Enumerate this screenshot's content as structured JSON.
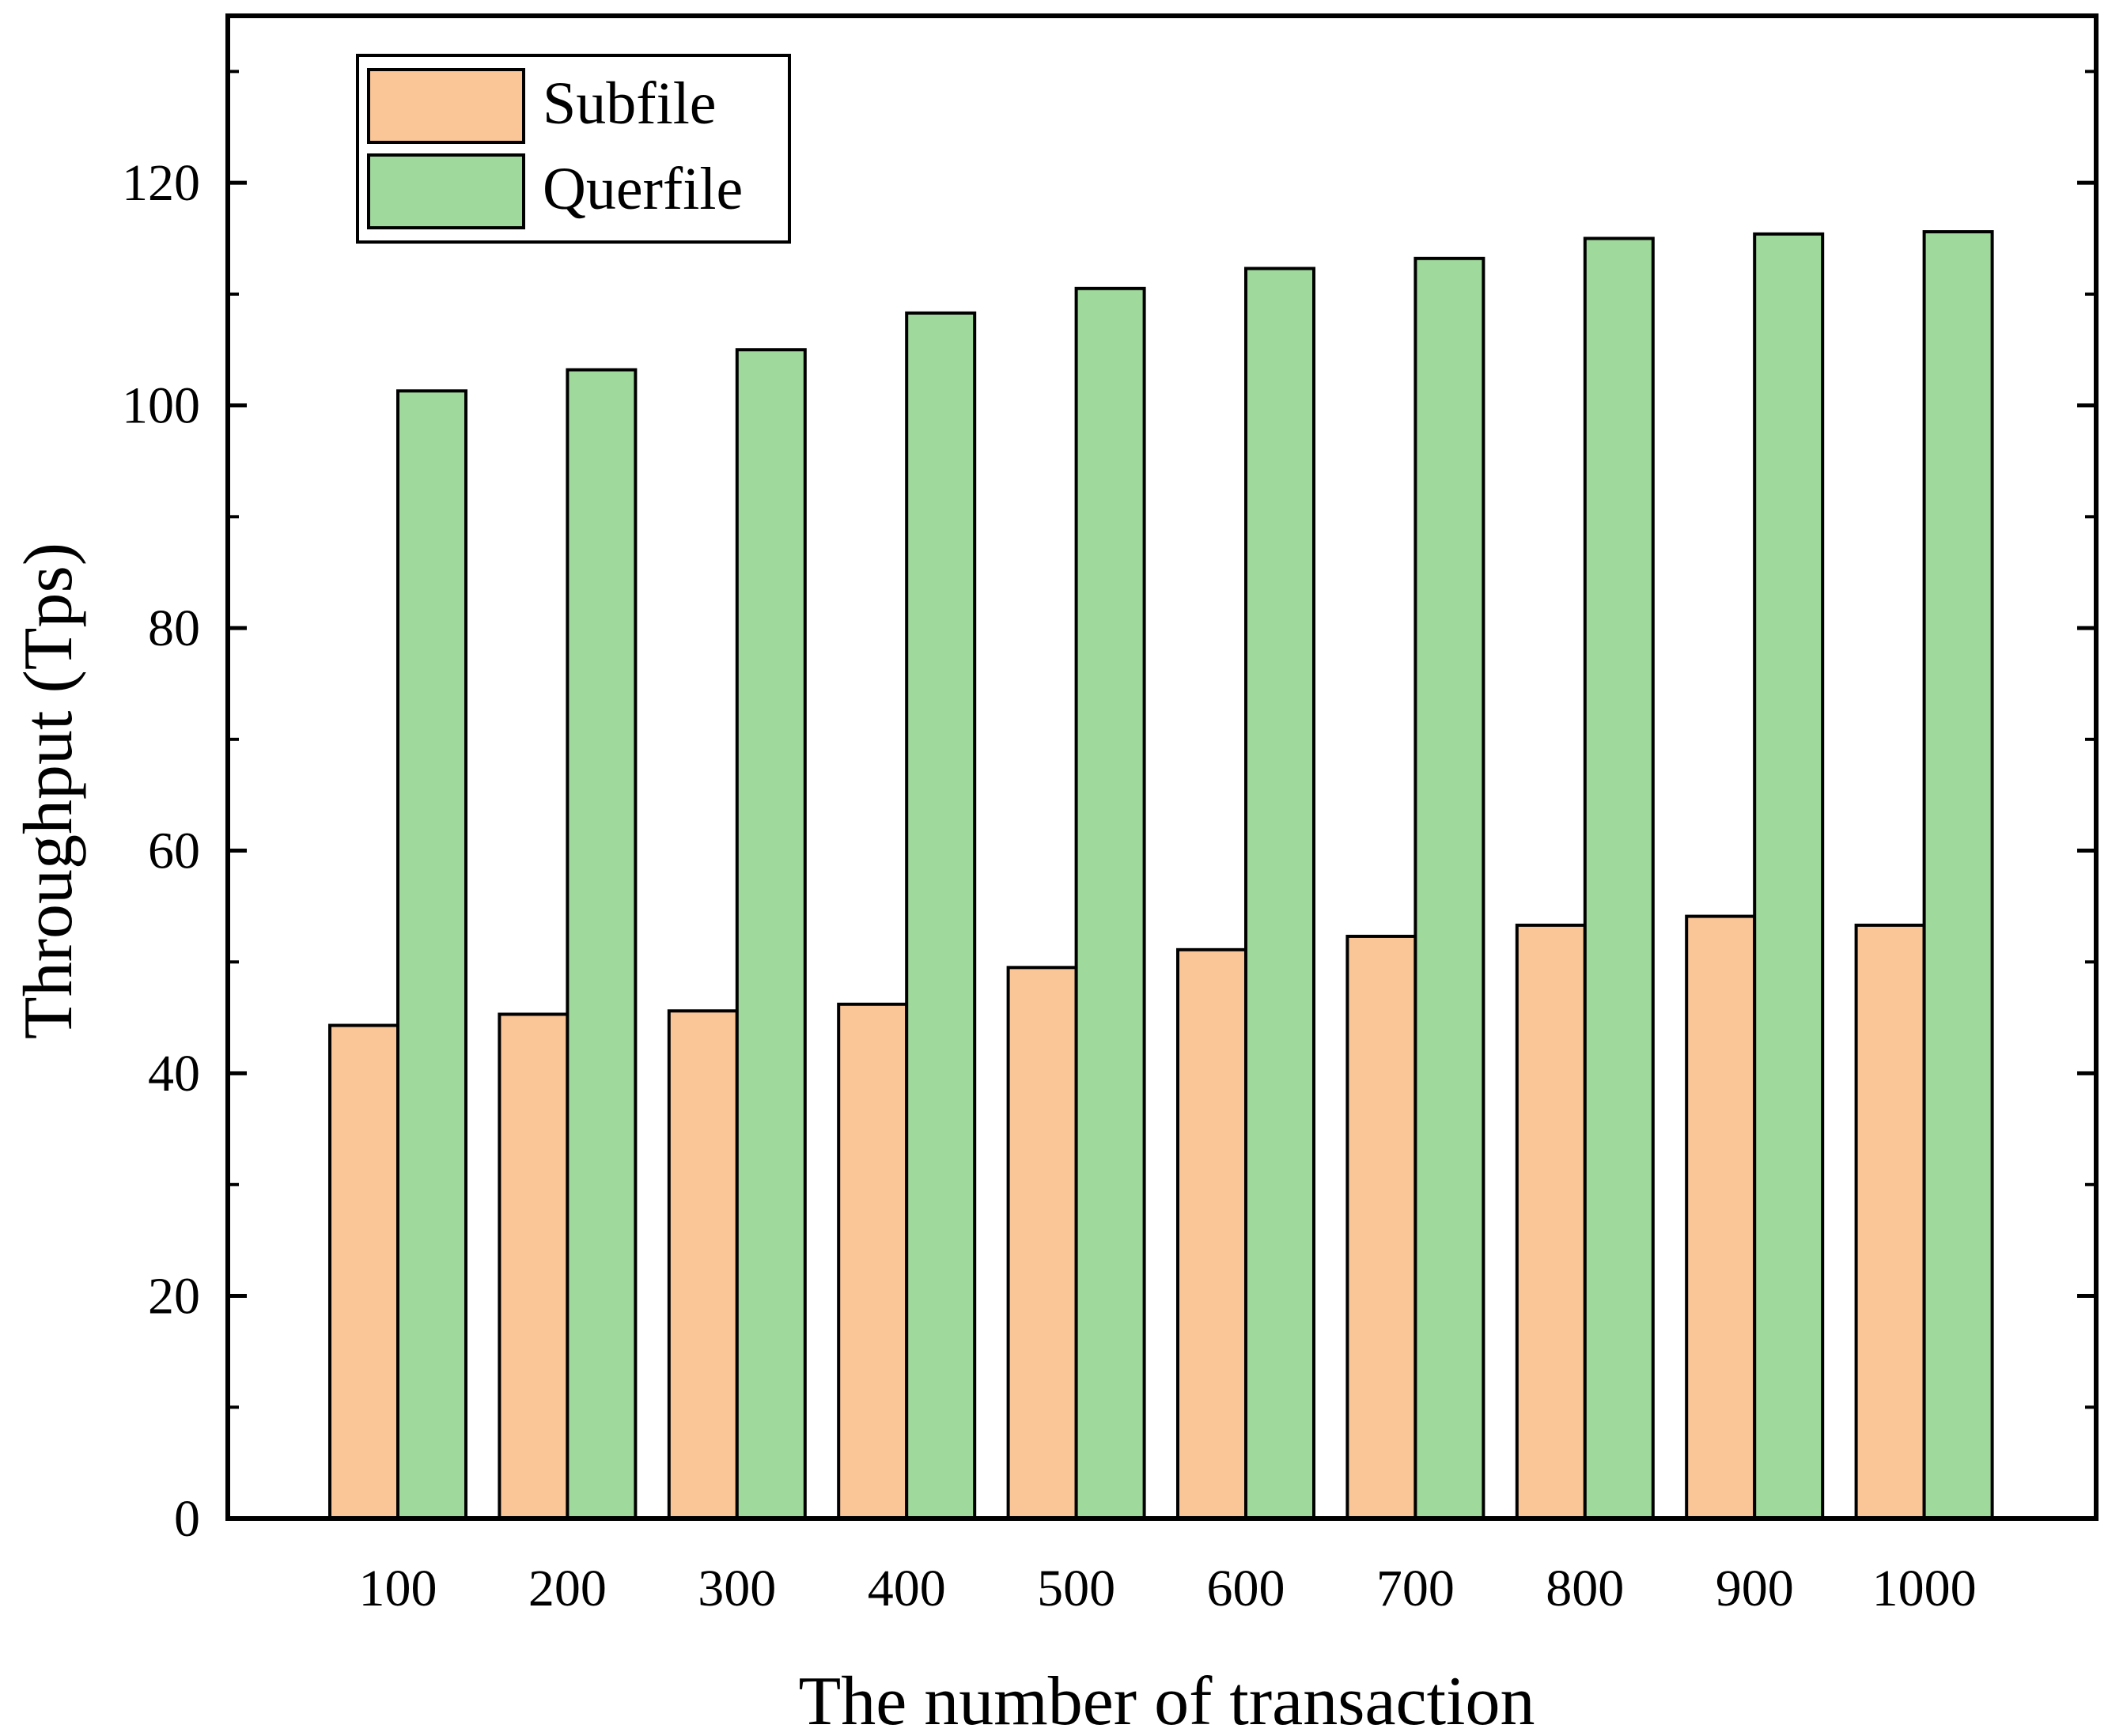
{
  "chart_data": {
    "type": "bar",
    "title": "",
    "xlabel": "The number of transaction",
    "ylabel": "Throughput (Tps)",
    "categories": [
      "100",
      "200",
      "300",
      "400",
      "500",
      "600",
      "700",
      "800",
      "900",
      "1000"
    ],
    "series": [
      {
        "name": "Subfile",
        "color": "#fbc697",
        "values": [
          44.3,
          45.3,
          45.6,
          46.2,
          49.5,
          51.1,
          52.3,
          53.3,
          54.1,
          53.3
        ]
      },
      {
        "name": "Querfile",
        "color": "#9fd99b",
        "values": [
          101.3,
          103.2,
          105.0,
          108.3,
          110.5,
          112.3,
          113.2,
          115.0,
          115.4,
          115.6
        ]
      }
    ],
    "ylim": [
      0,
      135
    ],
    "yticks": [
      0,
      20,
      40,
      60,
      80,
      100,
      120
    ],
    "yticks_minor": [
      10,
      30,
      50,
      70,
      90,
      110,
      130
    ],
    "grid": false,
    "legend_position": "top-left"
  }
}
